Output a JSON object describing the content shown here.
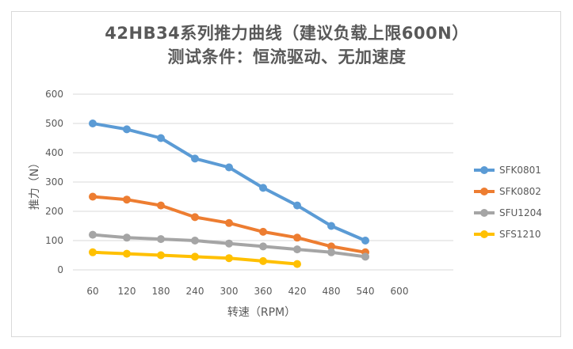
{
  "title_line1": "42HB34系列推力曲线（建议负载上限600N）",
  "title_line2": "测试条件：恒流驱动、无加速度",
  "chart_data": {
    "type": "line",
    "title": "42HB34系列推力曲线（建议负载上限600N） 测试条件：恒流驱动、无加速度",
    "xlabel": "转速（RPM）",
    "ylabel": "推力（N）",
    "x": [
      60,
      120,
      180,
      240,
      300,
      360,
      420,
      480,
      540,
      600
    ],
    "x_ticks": [
      "60",
      "120",
      "180",
      "240",
      "300",
      "360",
      "420",
      "480",
      "540",
      "600"
    ],
    "y_ticks": [
      "0",
      "100",
      "200",
      "300",
      "400",
      "500",
      "600"
    ],
    "ylim": [
      0,
      600
    ],
    "grid": true,
    "legend_position": "right",
    "series": [
      {
        "name": "SFK0801",
        "color": "#5b9bd5",
        "values": [
          500,
          480,
          450,
          380,
          350,
          280,
          220,
          150,
          100,
          null
        ]
      },
      {
        "name": "SFK0802",
        "color": "#ed7d31",
        "values": [
          250,
          240,
          220,
          180,
          160,
          130,
          110,
          80,
          60,
          null
        ]
      },
      {
        "name": "SFU1204",
        "color": "#a5a5a5",
        "values": [
          120,
          110,
          105,
          100,
          90,
          80,
          70,
          60,
          45,
          null
        ]
      },
      {
        "name": "SFS1210",
        "color": "#ffc000",
        "values": [
          60,
          55,
          50,
          45,
          40,
          30,
          20,
          null,
          null,
          null
        ]
      }
    ]
  }
}
